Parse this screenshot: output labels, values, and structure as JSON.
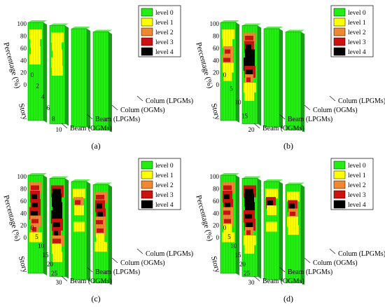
{
  "legend": {
    "items": [
      {
        "label": "level 0",
        "color": "#22ee11"
      },
      {
        "label": "level 1",
        "color": "#ffff00"
      },
      {
        "label": "level 2",
        "color": "#ee8833"
      },
      {
        "label": "level 3",
        "color": "#cc1111"
      },
      {
        "label": "level 4",
        "color": "#000000"
      }
    ]
  },
  "chart_data": [
    {
      "type": "heatmap",
      "panel_label": "(a)",
      "stories": 10,
      "xlabel": "Story",
      "ylabel": "Percentage (%)",
      "y_ticks": [
        "0",
        "20",
        "40",
        "60",
        "80",
        "100"
      ],
      "x_ticks": [
        "0",
        "2",
        "4",
        "6",
        "8",
        "10"
      ],
      "series": [
        {
          "name": "Beam (OGMs)",
          "levels": [
            "1",
            "1",
            "1",
            "1",
            "0",
            "0",
            "0",
            "0",
            "0",
            "0"
          ]
        },
        {
          "name": "Beam (LPGMs)",
          "levels": [
            "1",
            "1",
            "1",
            "1",
            "1",
            "0",
            "0",
            "0",
            "0",
            "0"
          ]
        },
        {
          "name": "Colum (OGMs)",
          "levels": [
            "0",
            "0",
            "0",
            "0",
            "0",
            "0",
            "0",
            "0",
            "0",
            "0"
          ]
        },
        {
          "name": "Colum (LPGMs)",
          "levels": [
            "0",
            "0",
            "0",
            "0",
            "0",
            "0",
            "0",
            "0",
            "0",
            "0"
          ]
        }
      ]
    },
    {
      "type": "heatmap",
      "panel_label": "(b)",
      "stories": 20,
      "xlabel": "Story",
      "ylabel": "Percentage (%)",
      "y_ticks": [
        "0",
        "20",
        "40",
        "60",
        "80",
        "100"
      ],
      "x_ticks": [
        "0",
        "5",
        "10",
        "15",
        "20"
      ],
      "series": [
        {
          "name": "Beam (OGMs)",
          "levels": [
            "1",
            "1",
            "2",
            "2",
            "1",
            "1",
            "0",
            "0",
            "0",
            "0"
          ]
        },
        {
          "name": "Beam (LPGMs)",
          "levels": [
            "2",
            "3",
            "4",
            "4",
            "3",
            "2",
            "1",
            "1",
            "0",
            "0"
          ]
        },
        {
          "name": "Colum (OGMs)",
          "levels": [
            "0",
            "0",
            "0",
            "0",
            "0",
            "0",
            "0",
            "0",
            "0",
            "0"
          ]
        },
        {
          "name": "Colum (LPGMs)",
          "levels": [
            "0",
            "0",
            "0",
            "0",
            "0",
            "0",
            "0",
            "0",
            "0",
            "0"
          ]
        }
      ]
    },
    {
      "type": "heatmap",
      "panel_label": "(c)",
      "stories": 30,
      "xlabel": "Story",
      "ylabel": "Percentage (%)",
      "y_ticks": [
        "0",
        "20",
        "40",
        "60",
        "80",
        "100"
      ],
      "x_ticks": [
        "0",
        "5",
        "10",
        "15",
        "20",
        "25",
        "30"
      ],
      "series": [
        {
          "name": "Beam (OGMs)",
          "levels": [
            "2",
            "3",
            "3",
            "3",
            "2",
            "2",
            "1",
            "0",
            "0",
            "0"
          ]
        },
        {
          "name": "Beam (LPGMs)",
          "levels": [
            "3",
            "4",
            "4",
            "4",
            "3",
            "3",
            "2",
            "1",
            "1",
            "0"
          ]
        },
        {
          "name": "Colum (OGMs)",
          "levels": [
            "1",
            "2",
            "1",
            "0",
            "1",
            "0",
            "0",
            "0",
            "0",
            "0"
          ]
        },
        {
          "name": "Colum (LPGMs)",
          "levels": [
            "2",
            "3",
            "3",
            "2",
            "2",
            "1",
            "1",
            "0",
            "0",
            "0"
          ]
        }
      ]
    },
    {
      "type": "heatmap",
      "panel_label": "(d)",
      "stories": 30,
      "xlabel": "Story",
      "ylabel": "Percentage (%)",
      "y_ticks": [
        "0",
        "20",
        "40",
        "60",
        "80",
        "100"
      ],
      "x_ticks": [
        "0",
        "5",
        "10",
        "15",
        "20",
        "25",
        "30"
      ],
      "series": [
        {
          "name": "Beam (OGMs)",
          "levels": [
            "2",
            "3",
            "3",
            "2",
            "2",
            "1",
            "1",
            "0",
            "0",
            "0"
          ]
        },
        {
          "name": "Beam (LPGMs)",
          "levels": [
            "3",
            "4",
            "4",
            "3",
            "3",
            "2",
            "1",
            "1",
            "0",
            "0"
          ]
        },
        {
          "name": "Colum (OGMs)",
          "levels": [
            "1",
            "3",
            "1",
            "0",
            "1",
            "0",
            "0",
            "0",
            "0",
            "0"
          ]
        },
        {
          "name": "Colum (LPGMs)",
          "levels": [
            "1",
            "3",
            "2",
            "1",
            "1",
            "0",
            "0",
            "0",
            "0",
            "0"
          ]
        }
      ]
    }
  ]
}
